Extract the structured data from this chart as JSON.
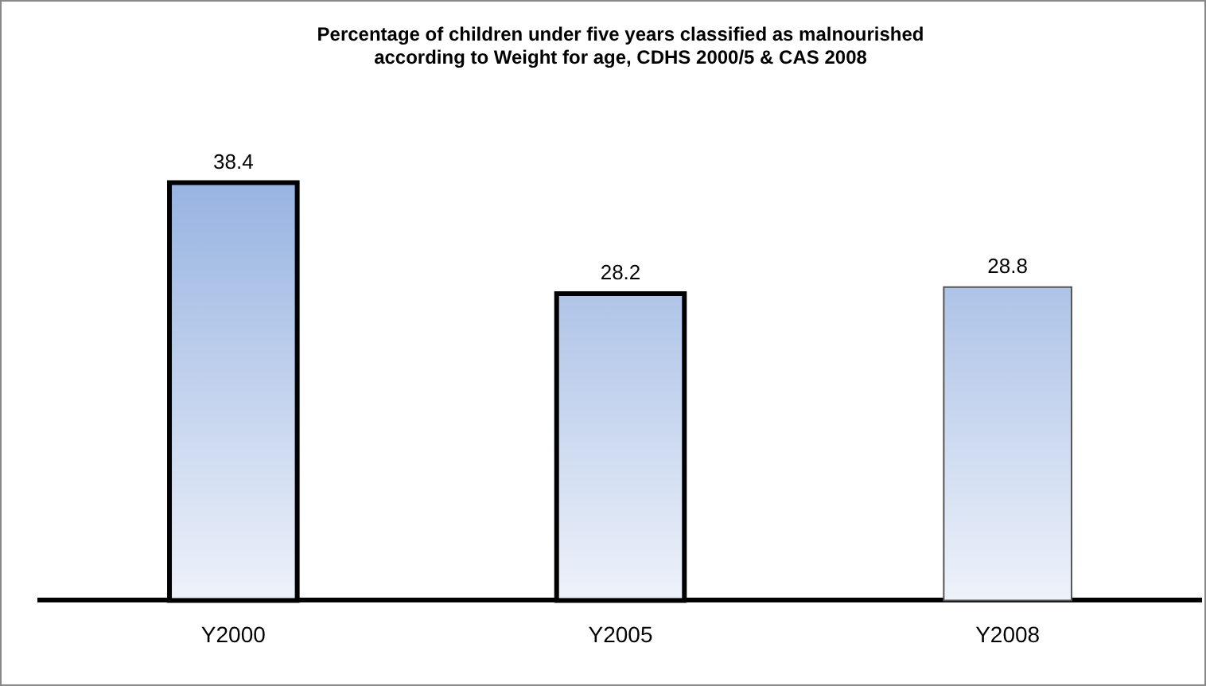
{
  "chart_data": {
    "type": "bar",
    "title": "Percentage of children under five years classified as malnourished\naccording to Weight for age, CDHS 2000/5 & CAS 2008",
    "categories": [
      "Y2000",
      "Y2005",
      "Y2008"
    ],
    "values": [
      38.4,
      28.2,
      28.8
    ],
    "color": "#94b1e0",
    "data_labels": true,
    "grid": false,
    "legend": false
  }
}
